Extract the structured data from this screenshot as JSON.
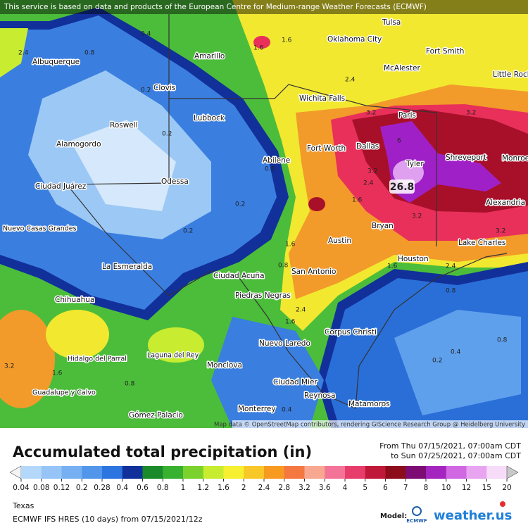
{
  "header": {
    "notice": "This service is based on data and products of the European Centre for Medium-range Weather Forecasts (ECMWF)"
  },
  "map": {
    "cities": [
      "Albuquerque",
      "Amarillo",
      "Oklahoma City",
      "Tulsa",
      "Fort Smith",
      "McAlester",
      "Little Rock",
      "Clovis",
      "Wichita Falls",
      "Roswell",
      "Lubbock",
      "Paris",
      "Alamogordo",
      "Fort Worth",
      "Dallas",
      "Shreveport",
      "Monroe",
      "Abilene",
      "Tyler",
      "Ciudad Juárez",
      "Odessa",
      "Alexandria",
      "Nuevo Casas Grandes",
      "Bryan",
      "Austin",
      "Lake Charles",
      "La Esmeralda",
      "Houston",
      "San Antonio",
      "Ciudad Acuña",
      "Piedras Negras",
      "Chihuahua",
      "Corpus Christi",
      "Nuevo Laredo",
      "Hidalgo del Parral",
      "Laguna del Rey",
      "Monclova",
      "Ciudad Mier",
      "Guadalupe y Calvo",
      "Reynosa",
      "Matamoros",
      "Monterrey",
      "Gómez Palacio"
    ],
    "value_labels": [
      26.8,
      0.4,
      2.4,
      0.8,
      1.6,
      1.6,
      2.4,
      0.2,
      0.2,
      0.2,
      0.2,
      0.8,
      3.2,
      3.2,
      6,
      3.2,
      2.4,
      1.6,
      3.2,
      3.2,
      1.6,
      0.8,
      1.6,
      2.4,
      0.8,
      2.4,
      1.6,
      0.4,
      0.2,
      0.8,
      3.2,
      1.6,
      0.8,
      0.4
    ],
    "attribution": "Map data © OpenStreetMap contributors, rendering GIScience Research Group @ Heidelberg University"
  },
  "legend": {
    "title": "Accumulated total precipitation (in)",
    "period_from": "From Thu 07/15/2021, 07:00am CDT",
    "period_to": "to Sun 07/25/2021, 07:00am CDT",
    "ticks": [
      0.04,
      0.08,
      0.12,
      0.2,
      0.28,
      0.4,
      0.6,
      0.8,
      1,
      1.2,
      1.6,
      2,
      2.4,
      2.8,
      3.2,
      3.6,
      4,
      5,
      6,
      7,
      8,
      10,
      12,
      15,
      20
    ],
    "colors": [
      "#f4f4f4",
      "#b4d8fa",
      "#96c4f6",
      "#76b0f2",
      "#5296ec",
      "#2c74e0",
      "#12309a",
      "#1a8a2a",
      "#38b030",
      "#7cd22c",
      "#c8ec30",
      "#f6f030",
      "#f8c828",
      "#f89a20",
      "#f47840",
      "#f8a890",
      "#f47498",
      "#e83c6c",
      "#c01838",
      "#8c0c1c",
      "#7c0c74",
      "#a424c0",
      "#d068e4",
      "#e8a4f0",
      "#f6dcf8",
      "#c8c8c8"
    ]
  },
  "footer": {
    "region": "Texas",
    "model_run": "ECMWF IFS HRES (10 days) from 07/15/2021/12z",
    "model_label": "Model:",
    "model_logo": "ECMWF",
    "brand": "weather.us"
  }
}
